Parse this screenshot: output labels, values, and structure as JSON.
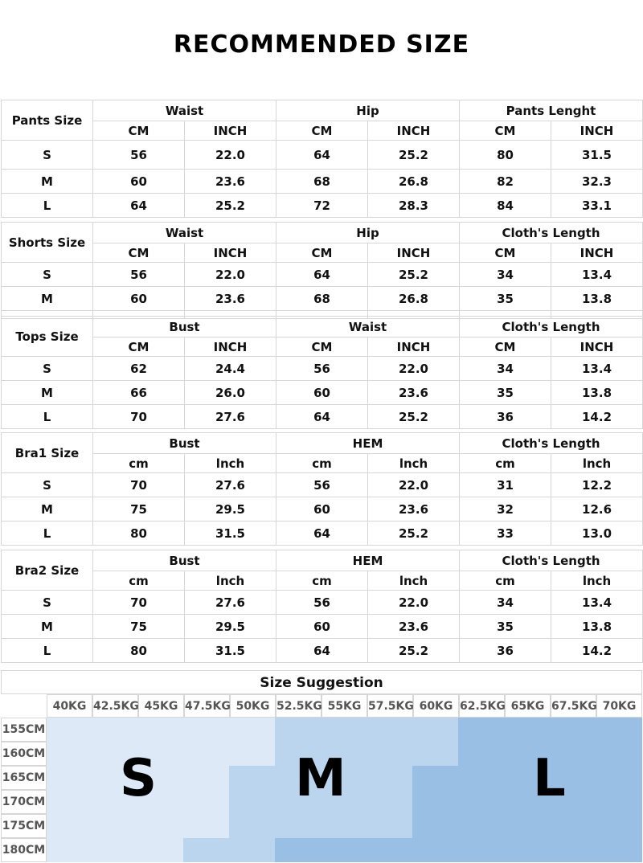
{
  "title": "RECOMMENDED SIZE",
  "tables": {
    "pants": {
      "size_label": "Pants Size",
      "groups": [
        "Waist",
        "Hip",
        "Pants Lenght"
      ],
      "units": [
        "CM",
        "INCH",
        "CM",
        "INCH",
        "CM",
        "INCH"
      ],
      "rows": [
        [
          "S",
          "56",
          "22.0",
          "64",
          "25.2",
          "80",
          "31.5"
        ],
        [
          "M",
          "60",
          "23.6",
          "68",
          "26.8",
          "82",
          "32.3"
        ],
        [
          "L",
          "64",
          "25.2",
          "72",
          "28.3",
          "84",
          "33.1"
        ]
      ]
    },
    "shorts": {
      "size_label": "Shorts Size",
      "groups": [
        "Waist",
        "Hip",
        "Cloth's Length"
      ],
      "units": [
        "CM",
        "INCH",
        "CM",
        "INCH",
        "CM",
        "INCH"
      ],
      "rows": [
        [
          "S",
          "56",
          "22.0",
          "64",
          "25.2",
          "34",
          "13.4"
        ],
        [
          "M",
          "60",
          "23.6",
          "68",
          "26.8",
          "35",
          "13.8"
        ]
      ]
    },
    "tops": {
      "size_label": "Tops Size",
      "groups": [
        "Bust",
        "Waist",
        "Cloth's Length"
      ],
      "units": [
        "CM",
        "INCH",
        "CM",
        "INCH",
        "CM",
        "INCH"
      ],
      "rows": [
        [
          "S",
          "62",
          "24.4",
          "56",
          "22.0",
          "34",
          "13.4"
        ],
        [
          "M",
          "66",
          "26.0",
          "60",
          "23.6",
          "35",
          "13.8"
        ],
        [
          "L",
          "70",
          "27.6",
          "64",
          "25.2",
          "36",
          "14.2"
        ]
      ]
    },
    "bra1": {
      "size_label": "Bra1 Size",
      "groups": [
        "Bust",
        "HEM",
        "Cloth's Length"
      ],
      "units": [
        "cm",
        "lnch",
        "cm",
        "lnch",
        "cm",
        "lnch"
      ],
      "rows": [
        [
          "S",
          "70",
          "27.6",
          "56",
          "22.0",
          "31",
          "12.2"
        ],
        [
          "M",
          "75",
          "29.5",
          "60",
          "23.6",
          "32",
          "12.6"
        ],
        [
          "L",
          "80",
          "31.5",
          "64",
          "25.2",
          "33",
          "13.0"
        ]
      ]
    },
    "bra2": {
      "size_label": "Bra2 Size",
      "groups": [
        "Bust",
        "HEM",
        "Cloth's Length"
      ],
      "units": [
        "cm",
        "lnch",
        "cm",
        "lnch",
        "cm",
        "lnch"
      ],
      "rows": [
        [
          "S",
          "70",
          "27.6",
          "56",
          "22.0",
          "34",
          "13.4"
        ],
        [
          "M",
          "75",
          "29.5",
          "60",
          "23.6",
          "35",
          "13.8"
        ],
        [
          "L",
          "80",
          "31.5",
          "64",
          "25.2",
          "36",
          "14.2"
        ]
      ]
    }
  },
  "suggestion": {
    "title": "Size Suggestion",
    "weights": [
      "40KG",
      "42.5KG",
      "45KG",
      "47.5KG",
      "50KG",
      "52.5KG",
      "55KG",
      "57.5KG",
      "60KG",
      "62.5KG",
      "65KG",
      "67.5KG",
      "70KG"
    ],
    "heights": [
      "155CM",
      "160CM",
      "165CM",
      "170CM",
      "175CM",
      "180CM"
    ],
    "sizes": [
      "S",
      "M",
      "L"
    ],
    "colors": {
      "S": "#dde9f6",
      "M": "#bcd5ee",
      "L": "#99bfe5"
    }
  }
}
